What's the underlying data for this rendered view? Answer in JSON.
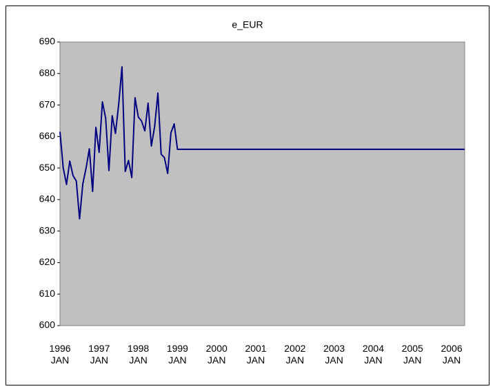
{
  "chart_data": {
    "type": "line",
    "title": "e_EUR",
    "categories": [
      "1996 JAN",
      null,
      null,
      null,
      null,
      null,
      null,
      null,
      null,
      null,
      null,
      null,
      "1997 JAN",
      null,
      null,
      null,
      null,
      null,
      null,
      null,
      null,
      null,
      null,
      null,
      "1998 JAN",
      null,
      null,
      null,
      null,
      null,
      null,
      null,
      null,
      null,
      null,
      null,
      "1999 JAN",
      null,
      null,
      null,
      null,
      null,
      null,
      null,
      null,
      null,
      null,
      null,
      "2000 JAN",
      null,
      null,
      null,
      null,
      null,
      null,
      null,
      null,
      null,
      null,
      null,
      "2001 JAN",
      null,
      null,
      null,
      null,
      null,
      null,
      null,
      null,
      null,
      null,
      null,
      "2002 JAN",
      null,
      null,
      null,
      null,
      null,
      null,
      null,
      null,
      null,
      null,
      null,
      "2003 JAN",
      null,
      null,
      null,
      null,
      null,
      null,
      null,
      null,
      null,
      null,
      null,
      "2004 JAN",
      null,
      null,
      null,
      null,
      null,
      null,
      null,
      null,
      null,
      null,
      null,
      "2005 JAN",
      null,
      null,
      null,
      null,
      null,
      null,
      null,
      null,
      null,
      null,
      null,
      "2006 JAN",
      null,
      null,
      null,
      null
    ],
    "series": [
      {
        "name": "e_EUR",
        "color": "#000080",
        "values": [
          661.5,
          650,
          644.8,
          652.2,
          647.6,
          645.9,
          633.9,
          645,
          650,
          656.1,
          642.6,
          662.9,
          655,
          671,
          665.8,
          649.2,
          666.6,
          661,
          670.3,
          682.1,
          648.9,
          652.4,
          647,
          672.3,
          666.2,
          664.9,
          661.8,
          670.6,
          657,
          663.1,
          673.8,
          654.4,
          653.3,
          648.3,
          661.2,
          664,
          655.957,
          655.957,
          655.957,
          655.957,
          655.957,
          655.957,
          655.957,
          655.957,
          655.957,
          655.957,
          655.957,
          655.957,
          655.957,
          655.957,
          655.957,
          655.957,
          655.957,
          655.957,
          655.957,
          655.957,
          655.957,
          655.957,
          655.957,
          655.957,
          655.957,
          655.957,
          655.957,
          655.957,
          655.957,
          655.957,
          655.957,
          655.957,
          655.957,
          655.957,
          655.957,
          655.957,
          655.957,
          655.957,
          655.957,
          655.957,
          655.957,
          655.957,
          655.957,
          655.957,
          655.957,
          655.957,
          655.957,
          655.957,
          655.957,
          655.957,
          655.957,
          655.957,
          655.957,
          655.957,
          655.957,
          655.957,
          655.957,
          655.957,
          655.957,
          655.957,
          655.957,
          655.957,
          655.957,
          655.957,
          655.957,
          655.957,
          655.957,
          655.957,
          655.957,
          655.957,
          655.957,
          655.957,
          655.957,
          655.957,
          655.957,
          655.957,
          655.957,
          655.957,
          655.957,
          655.957,
          655.957,
          655.957,
          655.957,
          655.957,
          655.957,
          655.957,
          655.957,
          655.957,
          655.957
        ]
      }
    ],
    "ylim": [
      600,
      690
    ],
    "yticks": [
      600,
      610,
      620,
      630,
      640,
      650,
      660,
      670,
      680,
      690
    ],
    "grid": false,
    "legend": false
  }
}
